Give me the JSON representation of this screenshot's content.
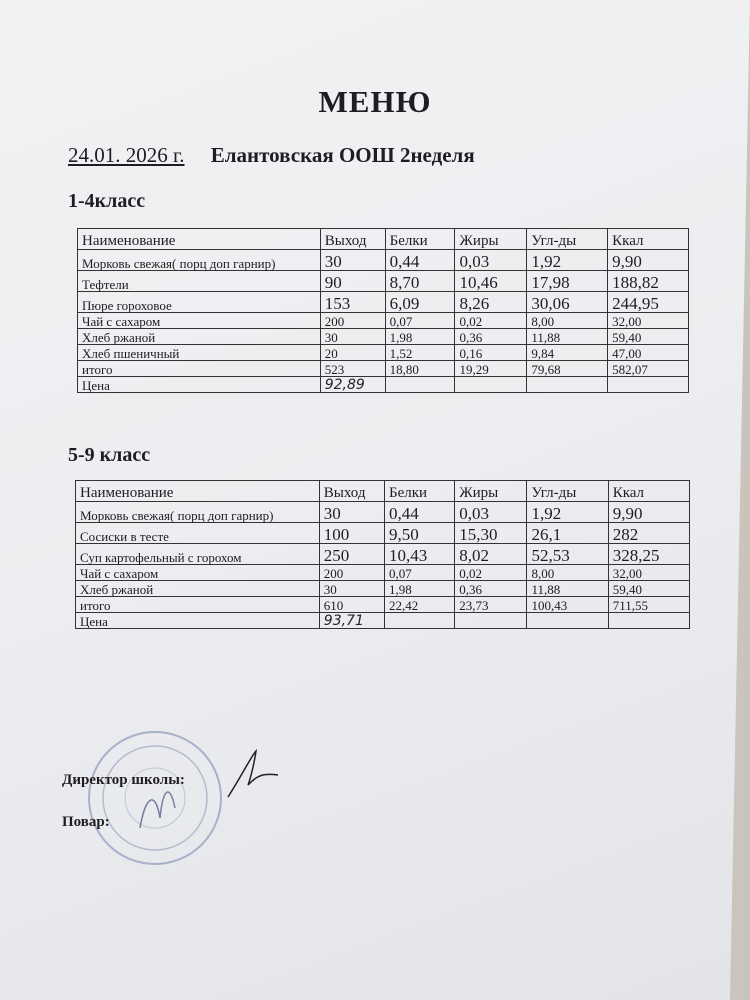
{
  "title": "МЕНЮ",
  "date": "24.01. 2026 г.",
  "school": "Елантовская ООШ 2неделя",
  "columns": [
    "Наименование",
    "Выход",
    "Белки",
    "Жиры",
    "Угл-ды",
    "Ккал"
  ],
  "section1": {
    "label": "1-4класс",
    "rows": [
      [
        "Морковь свежая( порц доп гарнир)",
        "30",
        "0,44",
        "0,03",
        "1,92",
        "9,90"
      ],
      [
        "Тефтели",
        "90",
        "8,70",
        "10,46",
        "17,98",
        "188,82"
      ],
      [
        "Пюре гороховое",
        "153",
        "6,09",
        "8,26",
        "30,06",
        "244,95"
      ],
      [
        " Чай с  сахаром",
        "200",
        "0,07",
        "0,02",
        "8,00",
        "32,00"
      ],
      [
        "Хлеб ржаной",
        "30",
        "1,98",
        "0,36",
        "11,88",
        "59,40"
      ],
      [
        "Хлеб пшеничный",
        "20",
        "1,52",
        "0,16",
        "9,84",
        "47,00"
      ],
      [
        "итого",
        "523",
        "18,80",
        "19,29",
        "79,68",
        "582,07"
      ]
    ],
    "price_label": "Цена",
    "price": "92,89"
  },
  "section2": {
    "label": "5-9 класс",
    "rows": [
      [
        "Морковь свежая( порц доп гарнир)",
        "30",
        "0,44",
        "0,03",
        "1,92",
        "9,90"
      ],
      [
        "Сосиски в тесте",
        "100",
        "9,50",
        "15,30",
        "26,1",
        "282"
      ],
      [
        "Суп картофельный с горохом",
        "250",
        "10,43",
        "8,02",
        "52,53",
        "328,25"
      ],
      [
        " Чай с  сахаром",
        "200",
        "0,07",
        "0,02",
        "8,00",
        "32,00"
      ],
      [
        "Хлеб ржаной",
        "30",
        "1,98",
        "0,36",
        "11,88",
        "59,40"
      ],
      [
        "итого",
        "610",
        "22,42",
        "23,73",
        "100,43",
        "711,55"
      ]
    ],
    "price_label": "Цена",
    "price": "93,71"
  },
  "director_label": "Директор школы:",
  "cook_label": "Повар:",
  "stamp_color": "#5a6b9a"
}
